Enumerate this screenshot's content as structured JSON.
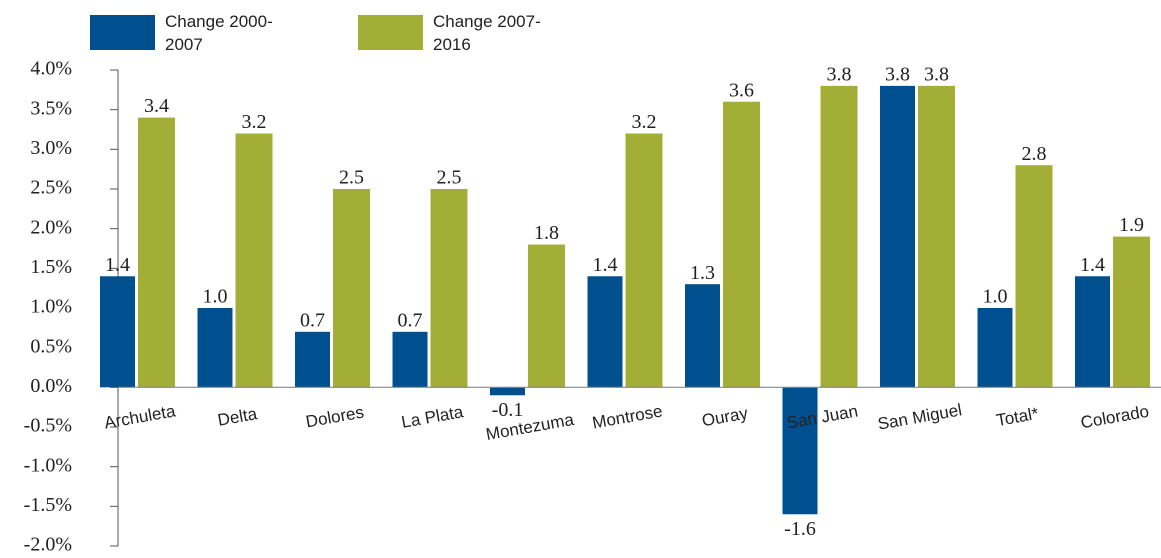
{
  "chart_data": {
    "type": "bar",
    "categories": [
      "Archuleta",
      "Delta",
      "Dolores",
      "La Plata",
      "Montezuma",
      "Montrose",
      "Ouray",
      "San Juan",
      "San Miguel",
      "Total*",
      "Colorado"
    ],
    "series": [
      {
        "name": "Change 2000-2007",
        "color": "#00508f",
        "values": [
          1.4,
          1.0,
          0.7,
          0.7,
          -0.1,
          1.4,
          1.3,
          -1.6,
          3.8,
          1.0,
          1.4
        ],
        "value_labels": [
          "1.4",
          "1.0",
          "0.7",
          "0.7",
          "-0.1",
          "1.4",
          "1.3",
          "-1.6",
          "3.8",
          "1.0",
          "1.4"
        ]
      },
      {
        "name": "Change 2007-2016",
        "color": "#a3ae37",
        "values": [
          3.4,
          3.2,
          2.5,
          2.5,
          1.8,
          3.2,
          3.6,
          3.8,
          3.8,
          2.8,
          1.9
        ]
      }
    ],
    "ylim": [
      -2,
      4
    ],
    "yticks": [
      {
        "value": -2,
        "label": "-2.0%"
      },
      {
        "value": -1.5,
        "label": "-1.5%"
      },
      {
        "value": -1,
        "label": "-1.0%"
      },
      {
        "value": -0.5,
        "label": "-0.5%"
      },
      {
        "value": 0,
        "label": "0.0%"
      },
      {
        "value": 0.5,
        "label": "0.5%"
      },
      {
        "value": 1,
        "label": "1.0%"
      },
      {
        "value": 1.5,
        "label": "1.5%"
      },
      {
        "value": 2,
        "label": "2.0%"
      },
      {
        "value": 2.5,
        "label": "2.5%"
      },
      {
        "value": 3,
        "label": "3.0%"
      },
      {
        "value": 3.5,
        "label": "3.5%"
      },
      {
        "value": 4,
        "label": "4.0%"
      }
    ],
    "legend": "top-left"
  }
}
